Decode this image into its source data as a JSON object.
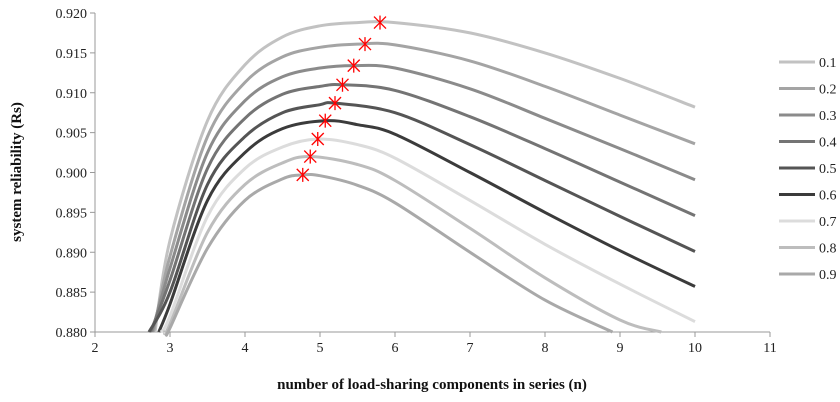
{
  "chart_data": {
    "type": "line",
    "title": "",
    "xlabel": "number of load-sharing components in series (n)",
    "ylabel": "system reliability (Rs)",
    "xlim": [
      2,
      11
    ],
    "ylim": [
      0.88,
      0.92
    ],
    "x_ticks": [
      "2",
      "3",
      "4",
      "5",
      "6",
      "7",
      "8",
      "9",
      "10",
      "11"
    ],
    "y_ticks": [
      "0.880",
      "0.885",
      "0.890",
      "0.895",
      "0.900",
      "0.905",
      "0.910",
      "0.915",
      "0.920"
    ],
    "grid": false,
    "legend_position": "right",
    "marker_color": "#ff0000",
    "series": [
      {
        "name": "0.1",
        "color": "#c2c2c2",
        "peak": [
          5.8,
          0.9188
        ],
        "points": [
          [
            2.8,
            0.88
          ],
          [
            3,
            0.8915
          ],
          [
            3.5,
            0.9065
          ],
          [
            4,
            0.9135
          ],
          [
            4.5,
            0.917
          ],
          [
            5,
            0.9184
          ],
          [
            5.5,
            0.9188
          ],
          [
            6,
            0.9188
          ],
          [
            7,
            0.9175
          ],
          [
            8,
            0.915
          ],
          [
            9,
            0.9118
          ],
          [
            10,
            0.9082
          ]
        ]
      },
      {
        "name": "0.2",
        "color": "#a4a4a4",
        "peak": [
          5.6,
          0.9161
        ],
        "points": [
          [
            2.78,
            0.88
          ],
          [
            3,
            0.8895
          ],
          [
            3.5,
            0.9045
          ],
          [
            4,
            0.9113
          ],
          [
            4.5,
            0.9145
          ],
          [
            5,
            0.9157
          ],
          [
            5.5,
            0.9161
          ],
          [
            6,
            0.916
          ],
          [
            7,
            0.914
          ],
          [
            8,
            0.9108
          ],
          [
            9,
            0.9072
          ],
          [
            10,
            0.9036
          ]
        ]
      },
      {
        "name": "0.3",
        "color": "#8b8b8b",
        "peak": [
          5.45,
          0.9134
        ],
        "points": [
          [
            2.76,
            0.88
          ],
          [
            3,
            0.888
          ],
          [
            3.5,
            0.9025
          ],
          [
            4,
            0.909
          ],
          [
            4.5,
            0.912
          ],
          [
            5,
            0.9131
          ],
          [
            5.45,
            0.9134
          ],
          [
            6,
            0.9131
          ],
          [
            7,
            0.9105
          ],
          [
            8,
            0.9068
          ],
          [
            9,
            0.903
          ],
          [
            10,
            0.8991
          ]
        ]
      },
      {
        "name": "0.4",
        "color": "#747474",
        "peak": [
          5.3,
          0.911
        ],
        "points": [
          [
            2.74,
            0.88
          ],
          [
            3,
            0.8865
          ],
          [
            3.5,
            0.9005
          ],
          [
            4,
            0.9068
          ],
          [
            4.5,
            0.9098
          ],
          [
            5,
            0.9108
          ],
          [
            5.3,
            0.911
          ],
          [
            6,
            0.9103
          ],
          [
            7,
            0.907
          ],
          [
            8,
            0.903
          ],
          [
            9,
            0.8988
          ],
          [
            10,
            0.8946
          ]
        ]
      },
      {
        "name": "0.5",
        "color": "#555555",
        "peak": [
          5.2,
          0.9087
        ],
        "points": [
          [
            2.72,
            0.88
          ],
          [
            3,
            0.885
          ],
          [
            3.5,
            0.8985
          ],
          [
            4,
            0.9045
          ],
          [
            4.5,
            0.9075
          ],
          [
            5,
            0.9085
          ],
          [
            5.2,
            0.9087
          ],
          [
            6,
            0.9075
          ],
          [
            7,
            0.9035
          ],
          [
            8,
            0.899
          ],
          [
            9,
            0.8945
          ],
          [
            10,
            0.8901
          ]
        ]
      },
      {
        "name": "0.6",
        "color": "#3b3b3b",
        "peak": [
          5.07,
          0.9065
        ],
        "points": [
          [
            2.85,
            0.88
          ],
          [
            3,
            0.8835
          ],
          [
            3.5,
            0.8965
          ],
          [
            4,
            0.9025
          ],
          [
            4.5,
            0.9055
          ],
          [
            5.07,
            0.9065
          ],
          [
            5.5,
            0.906
          ],
          [
            6,
            0.9048
          ],
          [
            7,
            0.9
          ],
          [
            8,
            0.895
          ],
          [
            9,
            0.8902
          ],
          [
            10,
            0.8857
          ]
        ]
      },
      {
        "name": "0.7",
        "color": "#dcdcdc",
        "peak": [
          4.97,
          0.9042
        ],
        "points": [
          [
            2.88,
            0.88
          ],
          [
            3,
            0.882
          ],
          [
            3.5,
            0.8945
          ],
          [
            4,
            0.9005
          ],
          [
            4.5,
            0.9032
          ],
          [
            4.97,
            0.9042
          ],
          [
            5.5,
            0.9035
          ],
          [
            6,
            0.9018
          ],
          [
            7,
            0.8965
          ],
          [
            8,
            0.891
          ],
          [
            9,
            0.886
          ],
          [
            10,
            0.8813
          ]
        ]
      },
      {
        "name": "0.8",
        "color": "#bdbdbd",
        "peak": [
          4.87,
          0.902
        ],
        "points": [
          [
            2.92,
            0.88
          ],
          [
            3,
            0.881
          ],
          [
            3.5,
            0.8925
          ],
          [
            4,
            0.8985
          ],
          [
            4.5,
            0.9012
          ],
          [
            4.87,
            0.902
          ],
          [
            5.5,
            0.901
          ],
          [
            6,
            0.899
          ],
          [
            7,
            0.893
          ],
          [
            8,
            0.8868
          ],
          [
            9,
            0.8815
          ],
          [
            9.55,
            0.88
          ]
        ]
      },
      {
        "name": "0.9",
        "color": "#a9a9a9",
        "peak": [
          4.77,
          0.8997
        ],
        "points": [
          [
            2.97,
            0.88
          ],
          [
            3,
            0.8805
          ],
          [
            3.5,
            0.8905
          ],
          [
            4,
            0.8965
          ],
          [
            4.5,
            0.8992
          ],
          [
            4.77,
            0.8997
          ],
          [
            5,
            0.8996
          ],
          [
            5.5,
            0.8984
          ],
          [
            6,
            0.8962
          ],
          [
            7,
            0.89
          ],
          [
            8,
            0.884
          ],
          [
            8.9,
            0.88
          ]
        ]
      }
    ]
  }
}
